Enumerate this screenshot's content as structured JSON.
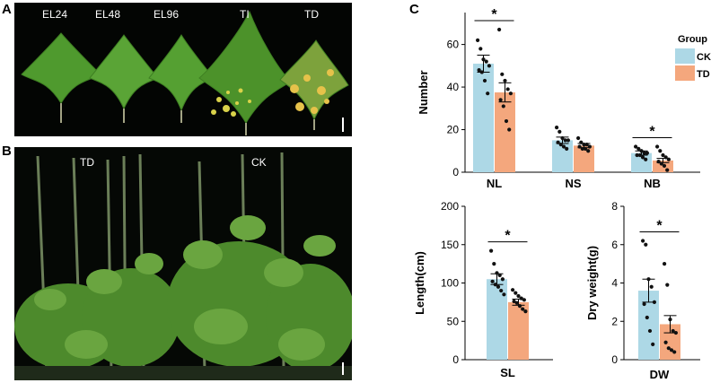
{
  "panels": {
    "a": "A",
    "b": "B",
    "c": "C"
  },
  "photoA": {
    "labels": [
      "EL24",
      "EL48",
      "EL96",
      "TI",
      "TD"
    ]
  },
  "photoB": {
    "labels": [
      "TD",
      "CK"
    ]
  },
  "legend": {
    "title": "Group",
    "items": [
      {
        "name": "CK",
        "color": "#add8e6"
      },
      {
        "name": "TD",
        "color": "#f4a77d"
      }
    ]
  },
  "colors": {
    "ck": "#add8e6",
    "td": "#f4a77d",
    "ck_point": "#000000"
  },
  "chart_data": [
    {
      "type": "bar",
      "categories": [
        "NL",
        "NS",
        "NB"
      ],
      "ylabel": "Number",
      "ylim": [
        0,
        75
      ],
      "yticks": [
        0,
        20,
        40,
        60
      ],
      "series": [
        {
          "name": "CK",
          "values": [
            51,
            15,
            9
          ],
          "errors": [
            4,
            1.5,
            1
          ],
          "points": [
            [
              62,
              58,
              53,
              52,
              50,
              48,
              47,
              43,
              37
            ],
            [
              21,
              19,
              16,
              15,
              15,
              14,
              13,
              12,
              11
            ],
            [
              12,
              11,
              10,
              9,
              9,
              8,
              8,
              7,
              6
            ]
          ]
        },
        {
          "name": "TD",
          "values": [
            37.5,
            12.5,
            5.5
          ],
          "errors": [
            4.5,
            1,
            1
          ],
          "points": [
            [
              67,
              46,
              43,
              39,
              37,
              34,
              31,
              24,
              20
            ],
            [
              16,
              14,
              13,
              13,
              12,
              12,
              11,
              11,
              10
            ],
            [
              12,
              10,
              8,
              7,
              6,
              5,
              4,
              3,
              1
            ]
          ]
        }
      ],
      "significance": [
        {
          "category": "NL",
          "label": "*"
        },
        {
          "category": "NB",
          "label": "*"
        }
      ]
    },
    {
      "type": "bar",
      "categories": [
        "SL"
      ],
      "ylabel": "Length(cm)",
      "ylim": [
        0,
        200
      ],
      "yticks": [
        0,
        50,
        100,
        150,
        200
      ],
      "series": [
        {
          "name": "CK",
          "values": [
            105
          ],
          "errors": [
            7
          ],
          "points": [
            [
              142,
              125,
              113,
              110,
              105,
              102,
              98,
              95,
              90,
              85
            ]
          ]
        },
        {
          "name": "TD",
          "values": [
            75
          ],
          "errors": [
            4
          ],
          "points": [
            [
              91,
              87,
              83,
              80,
              78,
              76,
              74,
              70,
              66,
              63
            ]
          ]
        }
      ],
      "significance": [
        {
          "category": "SL",
          "label": "*"
        }
      ]
    },
    {
      "type": "bar",
      "categories": [
        "DW"
      ],
      "ylabel": "Dry weight(g)",
      "ylim": [
        0,
        8
      ],
      "yticks": [
        0,
        2,
        4,
        6,
        8
      ],
      "series": [
        {
          "name": "CK",
          "values": [
            3.6
          ],
          "errors": [
            0.6
          ],
          "points": [
            [
              6.2,
              6.0,
              4.2,
              3.8,
              3.0,
              2.9,
              2.2,
              1.5,
              0.8
            ]
          ]
        },
        {
          "name": "TD",
          "values": [
            1.85
          ],
          "errors": [
            0.45
          ],
          "points": [
            [
              5.0,
              3.9,
              2.1,
              1.5,
              1.4,
              0.9,
              0.6,
              0.5,
              0.4
            ]
          ]
        }
      ],
      "significance": [
        {
          "category": "DW",
          "label": "*"
        }
      ]
    }
  ]
}
